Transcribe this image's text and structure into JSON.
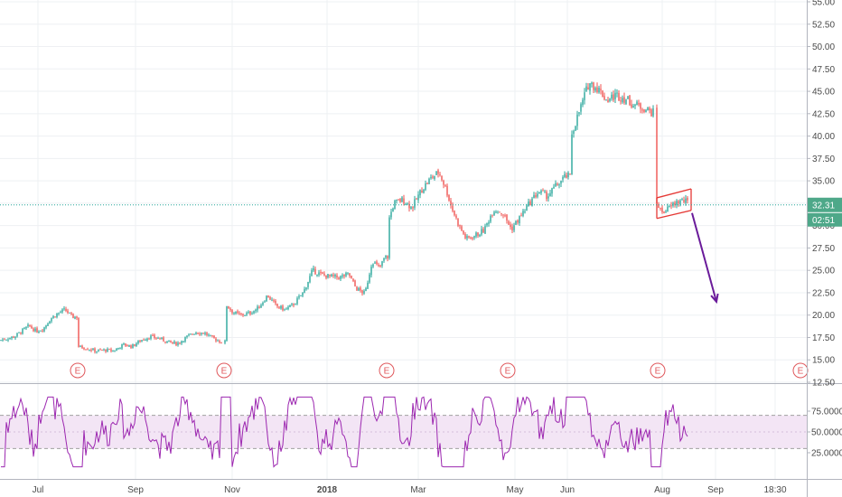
{
  "chart_data": [
    {
      "type": "candlestick",
      "title": "",
      "price_axis_ticks": [
        "55.00",
        "52.50",
        "50.00",
        "47.50",
        "45.00",
        "42.50",
        "40.00",
        "37.50",
        "35.00",
        "32.50",
        "30.00",
        "27.50",
        "25.00",
        "22.50",
        "20.00",
        "17.50",
        "15.00",
        "12.50"
      ],
      "ylim": [
        12.5,
        55.0
      ],
      "x_ticks": [
        "Jul",
        "Sep",
        "Nov",
        "2018",
        "Mar",
        "May",
        "Jun",
        "Aug",
        "Sep",
        "18:30"
      ],
      "last_price": "32.31",
      "countdown": "02:51",
      "earnings_label": "E",
      "earnings_count": 6,
      "close_path": [
        [
          0,
          17.2
        ],
        [
          8,
          17.4
        ],
        [
          16,
          17.6
        ],
        [
          24,
          18.2
        ],
        [
          32,
          18.8
        ],
        [
          40,
          18.2
        ],
        [
          48,
          18.5
        ],
        [
          56,
          19.6
        ],
        [
          64,
          20.2
        ],
        [
          72,
          20.6
        ],
        [
          80,
          19.8
        ],
        [
          86,
          16.5
        ],
        [
          96,
          16.3
        ],
        [
          106,
          16.0
        ],
        [
          116,
          16.1
        ],
        [
          126,
          16.0
        ],
        [
          136,
          16.7
        ],
        [
          146,
          16.5
        ],
        [
          156,
          17.2
        ],
        [
          166,
          17.6
        ],
        [
          176,
          17.4
        ],
        [
          186,
          17.0
        ],
        [
          196,
          16.8
        ],
        [
          206,
          17.5
        ],
        [
          216,
          18.1
        ],
        [
          226,
          18.0
        ],
        [
          236,
          17.4
        ],
        [
          245,
          17.0
        ],
        [
          250,
          21.2
        ],
        [
          258,
          20.3
        ],
        [
          266,
          20.0
        ],
        [
          276,
          20.2
        ],
        [
          286,
          20.8
        ],
        [
          296,
          22.2
        ],
        [
          306,
          21.0
        ],
        [
          316,
          20.6
        ],
        [
          326,
          21.3
        ],
        [
          336,
          22.6
        ],
        [
          346,
          25.0
        ],
        [
          356,
          24.5
        ],
        [
          366,
          24.3
        ],
        [
          376,
          24.2
        ],
        [
          386,
          24.6
        ],
        [
          394,
          23.0
        ],
        [
          404,
          22.4
        ],
        [
          412,
          26.1
        ],
        [
          420,
          25.2
        ],
        [
          426,
          26.5
        ],
        [
          430,
          30.5
        ],
        [
          436,
          32.5
        ],
        [
          446,
          32.9
        ],
        [
          456,
          32.0
        ],
        [
          466,
          33.9
        ],
        [
          476,
          35.2
        ],
        [
          486,
          36.0
        ],
        [
          494,
          34.0
        ],
        [
          500,
          32.0
        ],
        [
          508,
          30.0
        ],
        [
          516,
          28.5
        ],
        [
          526,
          28.9
        ],
        [
          536,
          29.5
        ],
        [
          546,
          31.8
        ],
        [
          556,
          31.5
        ],
        [
          566,
          29.6
        ],
        [
          576,
          31.0
        ],
        [
          586,
          32.5
        ],
        [
          596,
          33.8
        ],
        [
          606,
          33.3
        ],
        [
          616,
          34.5
        ],
        [
          626,
          35.5
        ],
        [
          632,
          40.0
        ],
        [
          642,
          43.0
        ],
        [
          652,
          46.0
        ],
        [
          662,
          45.3
        ],
        [
          672,
          44.0
        ],
        [
          682,
          44.6
        ],
        [
          692,
          44.2
        ],
        [
          702,
          43.5
        ],
        [
          712,
          43.2
        ],
        [
          722,
          42.6
        ],
        [
          726,
          32.8
        ],
        [
          732,
          31.5
        ],
        [
          740,
          31.9
        ],
        [
          748,
          32.6
        ],
        [
          756,
          32.8
        ],
        [
          762,
          32.5
        ]
      ],
      "overlays": [
        {
          "type": "pennant",
          "points": [
            [
              727,
              33.1
            ],
            [
              765,
              34.1
            ],
            [
              765,
              31.7
            ],
            [
              727,
              30.8
            ]
          ],
          "color": "#e53935"
        },
        {
          "type": "arrow",
          "from": [
            766,
            31.4
          ],
          "to": [
            793,
            21.5
          ],
          "color": "#6a1b9a"
        }
      ]
    },
    {
      "type": "line",
      "indicator": "RSI",
      "y_ticks": [
        "75.0000",
        "50.0000",
        "25.0000"
      ],
      "ylim": [
        0,
        100
      ],
      "band": [
        30,
        70
      ],
      "series_color": "#9c27b0",
      "band_color": "#f3e5f5"
    }
  ]
}
